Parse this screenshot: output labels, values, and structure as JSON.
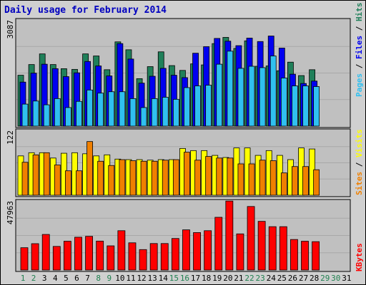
{
  "page": {
    "title": "Daily usage for February 2014"
  },
  "colors": {
    "frame_bg": "#d0d0d0",
    "panel_bg": "#c0c0c0",
    "title": "#0000c0",
    "pages": "#30c0f0",
    "files": "#0000f0",
    "hits": "#20805a",
    "sites": "#f08000",
    "visits": "#ffff00",
    "kbytes": "#ff0000",
    "weekend_day": "#208050",
    "weekday": "#000000"
  },
  "chart_data": [
    {
      "type": "bar",
      "title": "Daily usage for February 2014",
      "categories": [
        "1",
        "2",
        "3",
        "4",
        "5",
        "6",
        "7",
        "8",
        "9",
        "10",
        "11",
        "12",
        "13",
        "14",
        "15",
        "16",
        "17",
        "18",
        "19",
        "20",
        "21",
        "22",
        "23",
        "24",
        "25",
        "26",
        "27",
        "28",
        "29",
        "30",
        "31"
      ],
      "weekend_days": [
        "1",
        "2",
        "8",
        "9",
        "15",
        "16",
        "22",
        "23",
        "29",
        "30"
      ],
      "ylim": [
        0,
        3087
      ],
      "max_label": "3087",
      "series": [
        {
          "name": "Hits",
          "color": "#20805a",
          "values": [
            1480,
            1790,
            2100,
            1790,
            1670,
            1650,
            2100,
            2040,
            1640,
            2450,
            2220,
            1380,
            1730,
            2160,
            1760,
            1620,
            1810,
            1780,
            2400,
            2580,
            2260,
            2480,
            1740,
            1750,
            1610,
            1860,
            1470,
            1640,
            0,
            0,
            0
          ]
        },
        {
          "name": "Files",
          "color": "#0000f0",
          "values": [
            1280,
            1540,
            1800,
            1670,
            1440,
            1550,
            1880,
            1750,
            1460,
            2400,
            1950,
            1250,
            1450,
            1680,
            1480,
            1410,
            2120,
            2310,
            2550,
            2470,
            2340,
            2560,
            2460,
            2620,
            2270,
            1510,
            1240,
            1310,
            0,
            0,
            0
          ]
        },
        {
          "name": "Pages",
          "color": "#30c0f0",
          "values": [
            640,
            730,
            620,
            800,
            540,
            720,
            1050,
            960,
            1000,
            1000,
            800,
            540,
            800,
            840,
            780,
            1120,
            1170,
            1190,
            1800,
            2180,
            1680,
            1740,
            1700,
            2040,
            1400,
            1170,
            1170,
            1150,
            0,
            0,
            0
          ]
        }
      ],
      "legend": [
        "Pages",
        "Files",
        "Hits"
      ]
    },
    {
      "type": "bar",
      "categories": [
        "1",
        "2",
        "3",
        "4",
        "5",
        "6",
        "7",
        "8",
        "9",
        "10",
        "11",
        "12",
        "13",
        "14",
        "15",
        "16",
        "17",
        "18",
        "19",
        "20",
        "21",
        "22",
        "23",
        "24",
        "25",
        "26",
        "27",
        "28",
        "29",
        "30",
        "31"
      ],
      "ylim": [
        0,
        122
      ],
      "max_label": "122",
      "series": [
        {
          "name": "Visits",
          "color": "#ffff00",
          "values": [
            74,
            80,
            80,
            70,
            79,
            80,
            78,
            74,
            76,
            68,
            67,
            67,
            66,
            67,
            67,
            88,
            84,
            84,
            75,
            71,
            89,
            89,
            75,
            84,
            75,
            67,
            89,
            87,
            0,
            0,
            0
          ]
        },
        {
          "name": "Sites",
          "color": "#f08000",
          "values": [
            62,
            76,
            80,
            57,
            46,
            46,
            101,
            64,
            56,
            67,
            65,
            64,
            64,
            66,
            67,
            81,
            66,
            73,
            70,
            70,
            59,
            59,
            66,
            65,
            42,
            54,
            54,
            48,
            0,
            0,
            0
          ]
        }
      ],
      "legend": [
        "Sites",
        "Visits"
      ]
    },
    {
      "type": "bar",
      "categories": [
        "1",
        "2",
        "3",
        "4",
        "5",
        "6",
        "7",
        "8",
        "9",
        "10",
        "11",
        "12",
        "13",
        "14",
        "15",
        "16",
        "17",
        "18",
        "19",
        "20",
        "21",
        "22",
        "23",
        "24",
        "25",
        "26",
        "27",
        "28",
        "29",
        "30",
        "31"
      ],
      "ylim": [
        0,
        47963
      ],
      "max_label": "47963",
      "series": [
        {
          "name": "KBytes",
          "color": "#ff0000",
          "values": [
            15500,
            18300,
            24700,
            16400,
            20000,
            22800,
            23400,
            20100,
            16800,
            27300,
            18900,
            14200,
            18400,
            18400,
            21900,
            27900,
            26000,
            27300,
            36600,
            47900,
            25100,
            44100,
            33800,
            30100,
            30100,
            21200,
            20000,
            19700,
            0,
            0,
            0
          ]
        }
      ],
      "legend": [
        "KBytes"
      ]
    }
  ]
}
